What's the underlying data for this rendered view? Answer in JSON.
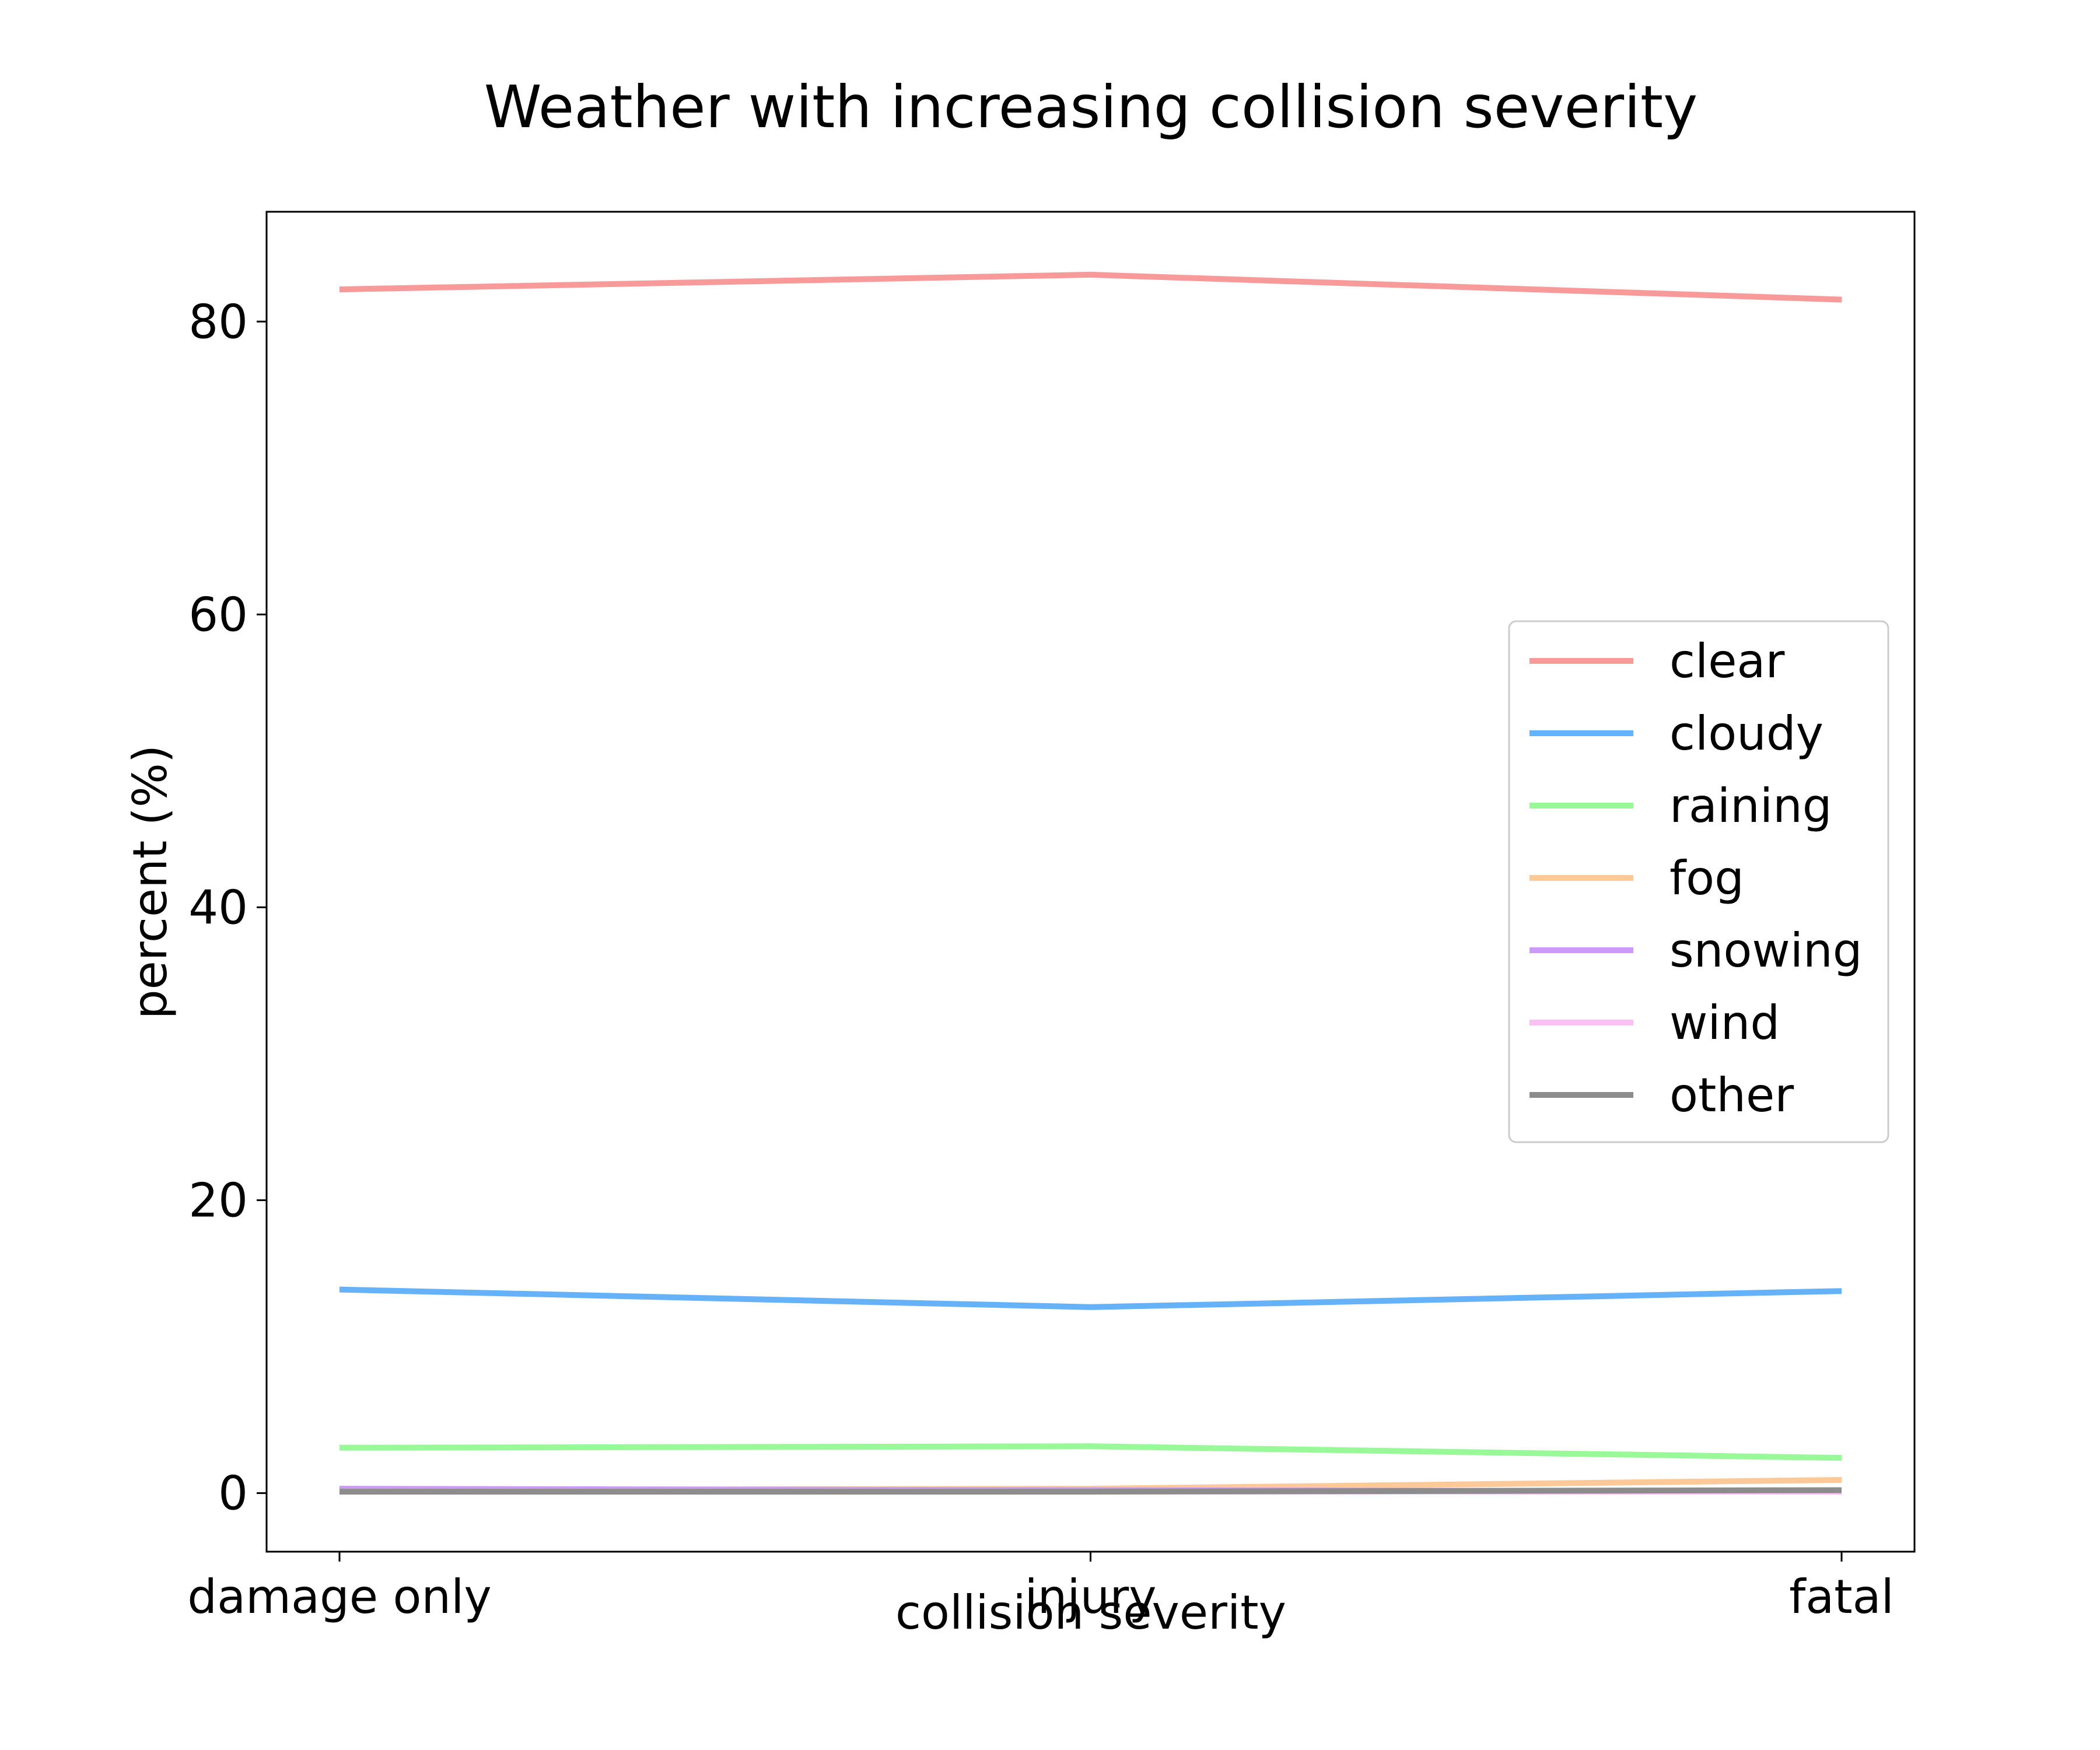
{
  "chart_data": {
    "type": "line",
    "title": "Weather with increasing collision severity",
    "xlabel": "collision severity",
    "ylabel": "percent (%)",
    "categories": [
      "damage only",
      "injury",
      "fatal"
    ],
    "ylim": [
      -4,
      87.5
    ],
    "yticks": [
      0,
      20,
      40,
      60,
      80
    ],
    "grid": false,
    "legend_position": "center-right",
    "series": [
      {
        "name": "clear",
        "color": "#f8999a",
        "values": [
          82.2,
          83.2,
          81.5
        ]
      },
      {
        "name": "cloudy",
        "color": "#66b2f8",
        "values": [
          13.9,
          12.7,
          13.8
        ]
      },
      {
        "name": "raining",
        "color": "#99f898",
        "values": [
          3.1,
          3.2,
          2.4
        ]
      },
      {
        "name": "fog",
        "color": "#fdc999",
        "values": [
          0.2,
          0.3,
          0.9
        ]
      },
      {
        "name": "snowing",
        "color": "#cc9af8",
        "values": [
          0.3,
          0.2,
          0.1
        ]
      },
      {
        "name": "wind",
        "color": "#f9c0f2",
        "values": [
          0.1,
          0.1,
          0.1
        ]
      },
      {
        "name": "other",
        "color": "#8c8c8c",
        "values": [
          0.1,
          0.1,
          0.2
        ]
      }
    ]
  }
}
